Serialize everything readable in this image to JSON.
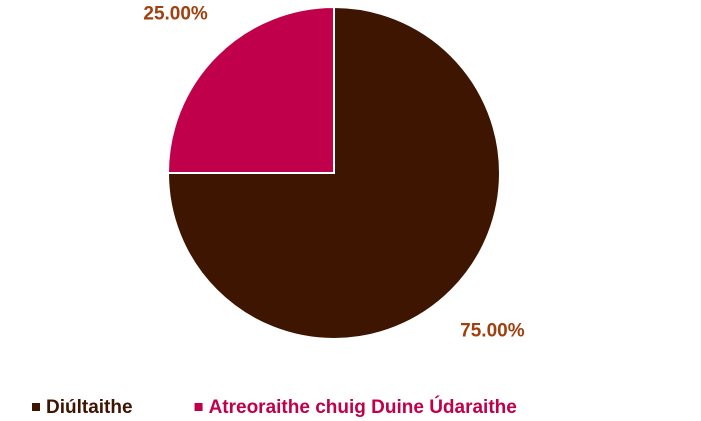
{
  "chart_data": {
    "type": "pie",
    "categories": [
      "Diúltaithe",
      "Atreoraithe chuig Duine Údaraithe"
    ],
    "values": [
      75,
      25
    ],
    "value_labels": [
      "75.00%",
      "25.00%"
    ],
    "colors": [
      "#3d1500",
      "#c0004a"
    ],
    "label_color": "#a0400f",
    "legend": "bottom"
  }
}
